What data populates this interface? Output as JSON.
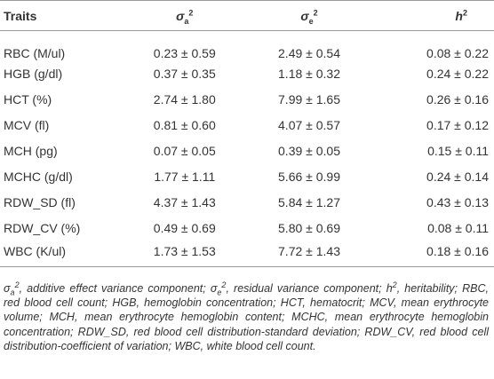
{
  "header": {
    "columns": [
      {
        "text": "Traits"
      },
      {
        "symbol": "σ",
        "sub": "a",
        "sup": "2"
      },
      {
        "symbol": "σ",
        "sub": "e",
        "sup": "2"
      },
      {
        "symbol": "h",
        "sup": "2"
      }
    ]
  },
  "table": {
    "rows": [
      [
        "RBC (M/ul)",
        "0.23 ± 0.59",
        "2.49 ± 0.54",
        "0.08 ± 0.22"
      ],
      [
        "HGB (g/dl)",
        "0.37 ± 0.35",
        "1.18 ± 0.32",
        "0.24 ± 0.22"
      ],
      [
        "HCT (%)",
        "2.74 ± 1.80",
        "7.99 ± 1.65",
        "0.26 ± 0.16"
      ],
      [
        "MCV (fl)",
        "0.81 ± 0.60",
        "4.07 ± 0.57",
        "0.17 ± 0.12"
      ],
      [
        "MCH (pg)",
        "0.07 ± 0.05",
        "0.39 ± 0.05",
        "0.15 ± 0.11"
      ],
      [
        "MCHC (g/dl)",
        "1.77 ± 1.11",
        "5.66 ± 0.99",
        "0.24 ± 0.14"
      ],
      [
        "RDW_SD (fl)",
        "4.37 ± 1.43",
        "5.84 ± 1.27",
        "0.43 ± 0.13"
      ],
      [
        "RDW_CV (%)",
        "0.49 ± 0.69",
        "5.80 ± 0.69",
        "0.08 ± 0.11"
      ],
      [
        "WBC (K/ul)",
        "1.73 ± 1.53",
        "7.72 ± 1.43",
        "0.18 ± 0.16"
      ]
    ]
  },
  "footnote": {
    "runs": [
      {
        "text": "σ"
      },
      {
        "text": "a",
        "pos": "sub"
      },
      {
        "text": "2",
        "pos": "sup"
      },
      {
        "text": ", additive effect variance component; "
      },
      {
        "text": "σ"
      },
      {
        "text": "e",
        "pos": "sub"
      },
      {
        "text": "2",
        "pos": "sup"
      },
      {
        "text": ", residual variance component; "
      },
      {
        "text": "h"
      },
      {
        "text": "2",
        "pos": "sup"
      },
      {
        "text": ", heritability; RBC, red blood cell count; HGB, hemoglobin concentration; HCT, hematocrit; MCV, mean erythrocyte volume; MCH, mean erythrocyte hemoglobin content; MCHC, mean erythrocyte hemoglobin concentration; RDW_SD, red blood cell distribution-standard deviation; RDW_CV, red blood cell distribution-coefficient of variation; WBC, white blood cell count."
      }
    ]
  }
}
